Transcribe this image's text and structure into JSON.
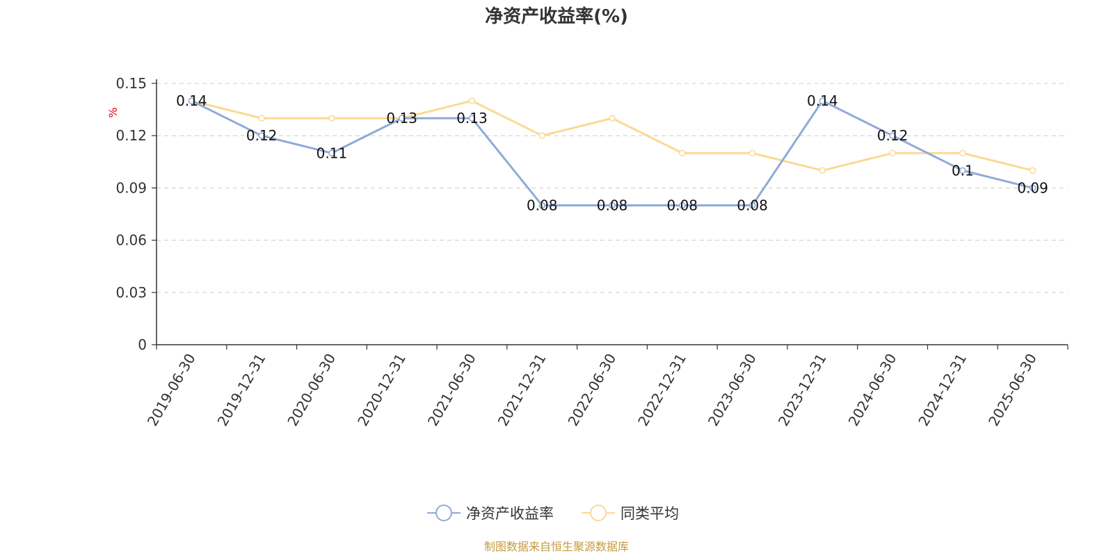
{
  "chart_data": {
    "type": "line",
    "title": "净资产收益率(%)",
    "ylabel": "%",
    "xlabel": "",
    "ylim": [
      0,
      0.15
    ],
    "yticks": [
      "0",
      "0.03",
      "0.06",
      "0.09",
      "0.12",
      "0.15"
    ],
    "ytick_values": [
      0,
      0.03,
      0.06,
      0.09,
      0.12,
      0.15
    ],
    "grid": true,
    "legend_position": "bottom-center",
    "categories": [
      "2019-06-30",
      "2019-12-31",
      "2020-06-30",
      "2020-12-31",
      "2021-06-30",
      "2021-12-31",
      "2022-06-30",
      "2022-12-31",
      "2023-06-30",
      "2023-12-31",
      "2024-06-30",
      "2024-12-31",
      "2025-06-30"
    ],
    "series": [
      {
        "name": "净资产收益率",
        "color": "#8eaad8",
        "values": [
          0.14,
          0.12,
          0.11,
          0.13,
          0.13,
          0.08,
          0.08,
          0.08,
          0.08,
          0.14,
          0.12,
          0.1,
          0.09
        ],
        "labels": [
          "0.14",
          "0.12",
          "0.11",
          "0.13",
          "0.13",
          "0.08",
          "0.08",
          "0.08",
          "0.08",
          "0.14",
          "0.12",
          "0.1",
          "0.09"
        ]
      },
      {
        "name": "同类平均",
        "color": "#fbd993",
        "values": [
          0.14,
          0.13,
          0.13,
          0.13,
          0.14,
          0.12,
          0.13,
          0.11,
          0.11,
          0.1,
          0.11,
          0.11,
          0.1
        ]
      }
    ],
    "source": "制图数据来自恒生聚源数据库"
  }
}
